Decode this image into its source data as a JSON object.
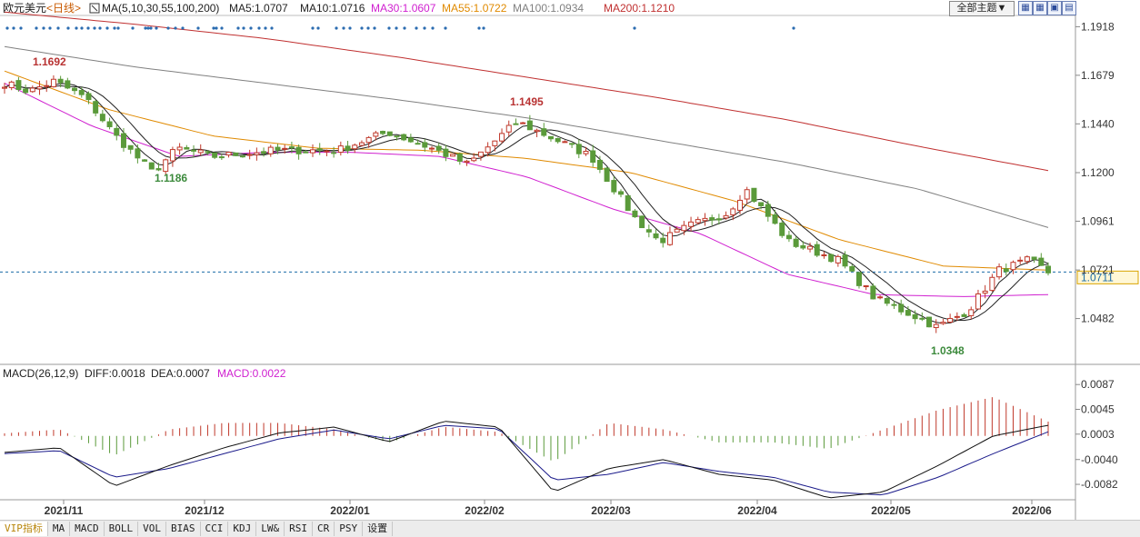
{
  "header": {
    "symbol": "欧元美元",
    "period": "<日线>",
    "ma_title": "MA(5,10,30,55,100,200)",
    "ma_values": [
      {
        "label": "MA5:1.0707",
        "color": "#222222"
      },
      {
        "label": "MA10:1.0716",
        "color": "#222222"
      },
      {
        "label": "MA30:1.0607",
        "color": "#d020d0"
      },
      {
        "label": "MA55:1.0722",
        "color": "#e08a00"
      },
      {
        "label": "MA100:1.0934",
        "color": "#808080"
      },
      {
        "label": "MA200:1.1210",
        "color": "#c03030"
      }
    ],
    "theme_button": "全部主题▼",
    "tool_icons": [
      "grid-icon",
      "grid-icon",
      "window-icon",
      "window-icon"
    ]
  },
  "macd_header": {
    "title": "MACD(26,12,9)",
    "diff": "DIFF:0.0018",
    "dea": "DEA:0.0007",
    "macd": "MACD:0.0022"
  },
  "colors": {
    "up": "#c0392b",
    "down": "#5a9a3a",
    "ma5": "#222222",
    "ma10": "#222222",
    "ma30": "#d020d0",
    "ma55": "#e08a00",
    "ma100": "#808080",
    "ma200": "#c03030",
    "last_line": "#1b6ca8",
    "marker": "#2b6cb0"
  },
  "chart_data": {
    "type": "candlestick",
    "ylim": [
      1.027,
      1.196
    ],
    "ytick_labels": [
      "1.1918",
      "1.1679",
      "1.1440",
      "1.1200",
      "1.0961",
      "1.0721",
      "1.0482"
    ],
    "xtick_labels": [
      "2021/11",
      "2021/12",
      "2022/01",
      "2022/02",
      "2022/03",
      "2022/04",
      "2022/05",
      "2022/06"
    ],
    "last_price": "1.0711",
    "annotations": [
      {
        "text": "1.1692",
        "value": 1.1692
      },
      {
        "text": "1.1186",
        "value": 1.1186
      },
      {
        "text": "1.1495",
        "value": 1.1495
      },
      {
        "text": "1.0348",
        "value": 1.0348
      }
    ],
    "ma_anchors": {
      "ma200": [
        1.199,
        1.193,
        1.186,
        1.177,
        1.167,
        1.157,
        1.146,
        1.133,
        1.121
      ],
      "ma100": [
        1.182,
        1.172,
        1.164,
        1.156,
        1.147,
        1.136,
        1.125,
        1.112,
        1.093
      ],
      "ma55": [
        1.17,
        1.151,
        1.138,
        1.132,
        1.131,
        1.127,
        1.12,
        1.106,
        1.087,
        1.074,
        1.072
      ],
      "ma30": [
        1.164,
        1.143,
        1.128,
        1.13,
        1.13,
        1.128,
        1.118,
        1.102,
        1.09,
        1.07,
        1.06,
        1.059,
        1.06
      ]
    },
    "macd_ylim": [
      -0.0105,
      0.0095
    ],
    "macd_ytick_labels": [
      "0.0087",
      "0.0045",
      "0.0003",
      "-0.0040",
      "-0.0082"
    ],
    "diff_anchors": [
      -0.0028,
      -0.002,
      -0.0085,
      -0.005,
      -0.002,
      0.0005,
      0.0015,
      -0.001,
      0.0025,
      0.0015,
      -0.0095,
      -0.0055,
      -0.004,
      -0.0065,
      -0.0075,
      -0.0105,
      -0.0095,
      -0.005,
      0.0,
      0.0018
    ],
    "dea_anchors": [
      -0.003,
      -0.0025,
      -0.007,
      -0.0055,
      -0.003,
      -0.0005,
      0.001,
      -0.0005,
      0.0018,
      0.0012,
      -0.0075,
      -0.0065,
      -0.0045,
      -0.006,
      -0.007,
      -0.0095,
      -0.01,
      -0.007,
      -0.003,
      0.0007
    ],
    "sample_candles": [
      {
        "o": 1.16,
        "h": 1.169,
        "l": 1.156,
        "c": 1.163
      },
      {
        "o": 1.15,
        "h": 1.152,
        "l": 1.118,
        "c": 1.125
      },
      {
        "o": 1.138,
        "h": 1.149,
        "l": 1.134,
        "c": 1.144
      },
      {
        "o": 1.08,
        "h": 1.09,
        "l": 1.076,
        "c": 1.084
      },
      {
        "o": 1.045,
        "h": 1.05,
        "l": 1.035,
        "c": 1.038
      },
      {
        "o": 1.072,
        "h": 1.077,
        "l": 1.068,
        "c": 1.071
      }
    ]
  },
  "tabs": [
    "VIP指标",
    "MA",
    "MACD",
    "BOLL",
    "VOL",
    "BIAS",
    "CCI",
    "KDJ",
    "LW&",
    "RSI",
    "CR",
    "PSY",
    "设置"
  ]
}
